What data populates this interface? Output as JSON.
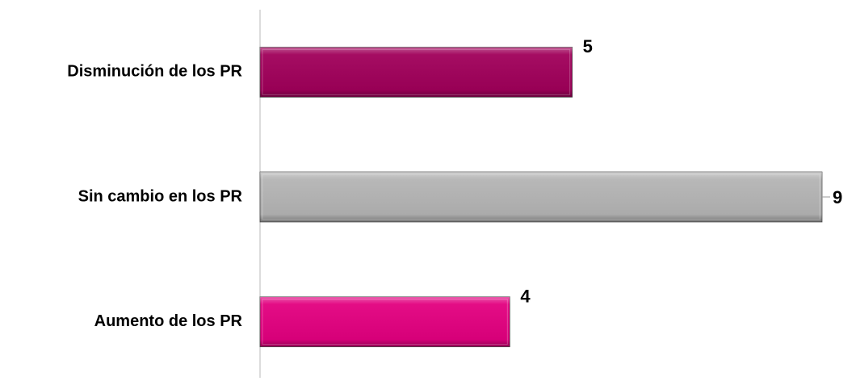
{
  "chart_data": {
    "type": "hbar",
    "categories": [
      "Disminución de los PR",
      "Sin cambio en los PR",
      "Aumento de los PR"
    ],
    "values": [
      5,
      9,
      4
    ],
    "colors": [
      "#a0005a",
      "#b4b4b4",
      "#e2007f"
    ],
    "xlim": [
      0,
      9
    ]
  }
}
